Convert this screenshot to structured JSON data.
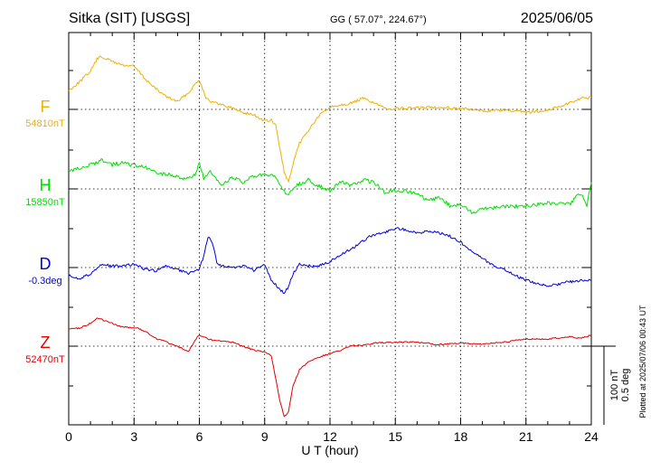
{
  "header": {
    "station": "Sitka (SIT)  [USGS]",
    "coords": "GG ( 57.07°, 224.67°)",
    "date": "2025/06/05"
  },
  "footer": {
    "plotted": "Plotted at 2025/07/06 00:43 UT"
  },
  "scale_bar": {
    "label_nt": "100 nT",
    "label_deg": "0.5 deg"
  },
  "colors": {
    "F": "#f0b000",
    "H": "#00e000",
    "D": "#0000e0",
    "Z": "#e00000",
    "axis": "#000000"
  },
  "chart_data": {
    "type": "line",
    "title": "Sitka (SIT)  [USGS]",
    "xlabel": "U T (hour)",
    "xlim": [
      0,
      24
    ],
    "xticks": [
      "0",
      "3",
      "6",
      "9",
      "12",
      "15",
      "18",
      "21",
      "24"
    ],
    "scale": {
      "nT_per_division": 100,
      "deg_per_division": 0.5
    },
    "grid": true,
    "series": [
      {
        "name": "F",
        "baseline_label": "54810nT",
        "units": "nT",
        "baseline": 54810,
        "x": [
          0,
          0.5,
          1,
          1.3,
          1.5,
          2,
          2.5,
          3,
          3.5,
          4,
          4.5,
          5,
          5.5,
          5.8,
          6,
          6.3,
          6.6,
          7,
          7.5,
          8,
          8.5,
          9,
          9.3,
          9.5,
          9.7,
          9.9,
          10.1,
          10.3,
          10.6,
          11,
          11.5,
          12,
          12.5,
          13,
          13.5,
          14,
          14.5,
          15,
          16,
          17,
          18,
          19,
          20,
          21,
          22,
          23,
          23.5,
          24
        ],
        "values": [
          24,
          35,
          49,
          64,
          67,
          61,
          56,
          55,
          39,
          26,
          16,
          10,
          21,
          32,
          38,
          15,
          9,
          6,
          2,
          -4,
          -7,
          -15,
          -14,
          -20,
          -50,
          -80,
          -93,
          -70,
          -43,
          -27,
          -8,
          3,
          6,
          8,
          14,
          9,
          1,
          1,
          2,
          3,
          1,
          -2,
          -1,
          -4,
          -1,
          8,
          14,
          15
        ]
      },
      {
        "name": "H",
        "baseline_label": "15850nT",
        "units": "nT",
        "baseline": 15850,
        "x": [
          0,
          0.5,
          1,
          1.5,
          2,
          2.5,
          3,
          3.5,
          4,
          4.5,
          5,
          5.5,
          5.8,
          6,
          6.2,
          6.5,
          7,
          7.5,
          8,
          8.5,
          9,
          9.5,
          10,
          10.5,
          11,
          11.5,
          12,
          12.5,
          13,
          13.5,
          14,
          14.5,
          15,
          15.5,
          16,
          16.5,
          17,
          17.5,
          18,
          18.5,
          19,
          20,
          21,
          22,
          23,
          23.5,
          23.8,
          24
        ],
        "values": [
          21,
          27,
          30,
          37,
          31,
          33,
          30,
          27,
          21,
          18,
          16,
          12,
          19,
          33,
          13,
          21,
          4,
          15,
          8,
          16,
          18,
          15,
          -8,
          5,
          11,
          4,
          -2,
          9,
          4,
          11,
          9,
          -4,
          -2,
          -3,
          -6,
          -16,
          -10,
          -21,
          -20,
          -30,
          -25,
          -22,
          -22,
          -18,
          -20,
          -5,
          -20,
          10
        ]
      },
      {
        "name": "D",
        "baseline_label": "-0.3deg",
        "units": "deg",
        "baseline": -0.3,
        "x": [
          0,
          0.5,
          1,
          1.5,
          2,
          2.5,
          3,
          3.5,
          4,
          4.5,
          5,
          5.5,
          6,
          6.2,
          6.4,
          6.6,
          6.8,
          7,
          7.5,
          8,
          8.5,
          9,
          9.3,
          9.5,
          9.7,
          9.9,
          10.1,
          10.3,
          10.6,
          11,
          11.5,
          12,
          12.5,
          13,
          13.5,
          14,
          14.5,
          15,
          15.5,
          16,
          16.5,
          17,
          17.5,
          18,
          18.5,
          19,
          19.5,
          20,
          20.5,
          21,
          22,
          23,
          24
        ],
        "values": [
          -0.05,
          -0.07,
          -0.04,
          0.02,
          0.01,
          0.01,
          0.02,
          -0.01,
          -0.02,
          0.01,
          -0.01,
          -0.04,
          -0.01,
          0.07,
          0.2,
          0.16,
          0.03,
          0.01,
          0.0,
          0.01,
          -0.02,
          0.02,
          -0.08,
          -0.11,
          -0.14,
          -0.16,
          -0.12,
          -0.04,
          0.02,
          0.01,
          0.01,
          0.04,
          0.08,
          0.12,
          0.17,
          0.21,
          0.22,
          0.25,
          0.24,
          0.22,
          0.23,
          0.22,
          0.2,
          0.16,
          0.11,
          0.06,
          0.01,
          -0.01,
          -0.05,
          -0.08,
          -0.12,
          -0.09,
          -0.08
        ]
      },
      {
        "name": "Z",
        "baseline_label": "52470nT",
        "units": "nT",
        "baseline": 52470,
        "x": [
          0,
          0.5,
          1,
          1.3,
          1.5,
          2,
          2.5,
          3,
          3.5,
          4,
          4.5,
          5,
          5.5,
          5.8,
          6,
          6.5,
          7,
          7.5,
          8,
          8.5,
          9,
          9.3,
          9.5,
          9.7,
          9.9,
          10.1,
          10.3,
          10.6,
          11,
          11.5,
          12,
          12.5,
          13,
          13.5,
          14,
          15,
          16,
          17,
          18,
          19,
          20,
          21,
          22,
          23,
          23.5,
          24
        ],
        "values": [
          22,
          23,
          29,
          36,
          34,
          29,
          24,
          24,
          19,
          10,
          5,
          0,
          -7,
          8,
          14,
          8,
          7,
          5,
          0,
          -5,
          -8,
          -12,
          -40,
          -70,
          -90,
          -83,
          -50,
          -30,
          -20,
          -14,
          -9,
          -5,
          1,
          1,
          4,
          5,
          5,
          2,
          4,
          3,
          5,
          9,
          9,
          12,
          10,
          14
        ]
      }
    ]
  }
}
